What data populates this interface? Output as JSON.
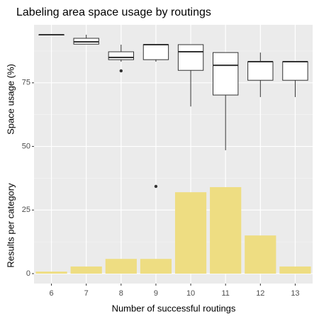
{
  "chart_data": {
    "type": "box",
    "title": "Labeling area space usage by routings",
    "x_label": "Number of successful routings",
    "y_labels": [
      "Space usage (%)",
      "Results per category"
    ],
    "categories": [
      "6",
      "7",
      "8",
      "9",
      "10",
      "11",
      "12",
      "13"
    ],
    "boxes": {
      "min": [
        93.9,
        90.2,
        83.3,
        83.3,
        65.7,
        48.5,
        69.4,
        69.4
      ],
      "q1": [
        93.9,
        90.2,
        84.1,
        84.1,
        79.9,
        70.2,
        76.0,
        76.0
      ],
      "median": [
        93.9,
        91.1,
        85.0,
        90.0,
        87.2,
        81.9,
        83.3,
        83.3
      ],
      "q3": [
        93.9,
        92.5,
        87.2,
        90.0,
        90.0,
        86.9,
        83.3,
        83.3
      ],
      "max": [
        93.9,
        93.9,
        90.0,
        90.0,
        90.0,
        86.9,
        86.9,
        83.3
      ]
    },
    "outliers": [
      [],
      [],
      [
        79.7
      ],
      [
        34.3
      ],
      [],
      [],
      [],
      []
    ],
    "box_color": "#ffffff",
    "bars": {
      "type": "bar",
      "values": [
        0.8,
        2.8,
        5.8,
        5.8,
        32,
        34,
        15,
        2.8
      ],
      "color": "#eedd82"
    },
    "ylim": [
      -3.9,
      97.8
    ],
    "yticks": [
      0,
      25,
      50,
      75
    ],
    "yminor": [
      12.5,
      37.5,
      62.5,
      87.5
    ],
    "grid": true
  }
}
